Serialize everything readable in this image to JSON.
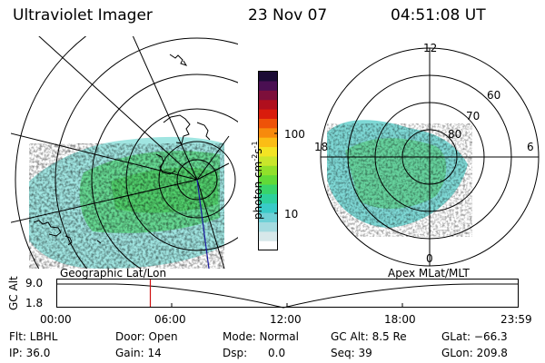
{
  "header": {
    "instrument": "Ultraviolet Imager",
    "date": "23 Nov 07",
    "time": "04:51:08 UT"
  },
  "geo_panel": {
    "label": "Geographic Lat/Lon"
  },
  "apex_panel": {
    "label": "Apex  MLat/MLT",
    "mlt_labels": [
      "12",
      "18",
      "6",
      "0"
    ],
    "lat_labels": [
      "60",
      "70",
      "80"
    ]
  },
  "colorbar": {
    "unit_label": "photon cm",
    "unit_exp1": "-2",
    "unit_mid": "s",
    "unit_exp2": "-1",
    "ticks": [
      "100",
      "10"
    ],
    "colors": [
      "#ffffff",
      "#d7e8ea",
      "#a4dbe0",
      "#6fd0d6",
      "#39cbc8",
      "#2dd09c",
      "#38d46a",
      "#61da37",
      "#91e02a",
      "#c9e62b",
      "#f3e423",
      "#fbbd15",
      "#f78a0c",
      "#ee5208",
      "#d91c0c",
      "#b00f1d",
      "#7d0f3b",
      "#4a0f52",
      "#1b0b35"
    ]
  },
  "altitude_plot": {
    "ylabel": "GC Alt",
    "yticks": [
      "9.0",
      "1.8"
    ],
    "xticks": [
      "00:00",
      "06:00",
      "12:00",
      "18:00",
      "23:59"
    ],
    "current_time_marker_hours": 4.85
  },
  "footer": {
    "filter": "Flt: LBHL",
    "ip": "IP: 36.0",
    "door": "Door: Open",
    "gain": "Gain: 14",
    "mode": "Mode: Normal",
    "dsp": "Dsp:      0.0",
    "gc_alt": "GC Alt: 8.5 Re",
    "seq": "Seq: 39",
    "glat": "GLat: −66.3",
    "glon": "GLon: 209.8"
  }
}
